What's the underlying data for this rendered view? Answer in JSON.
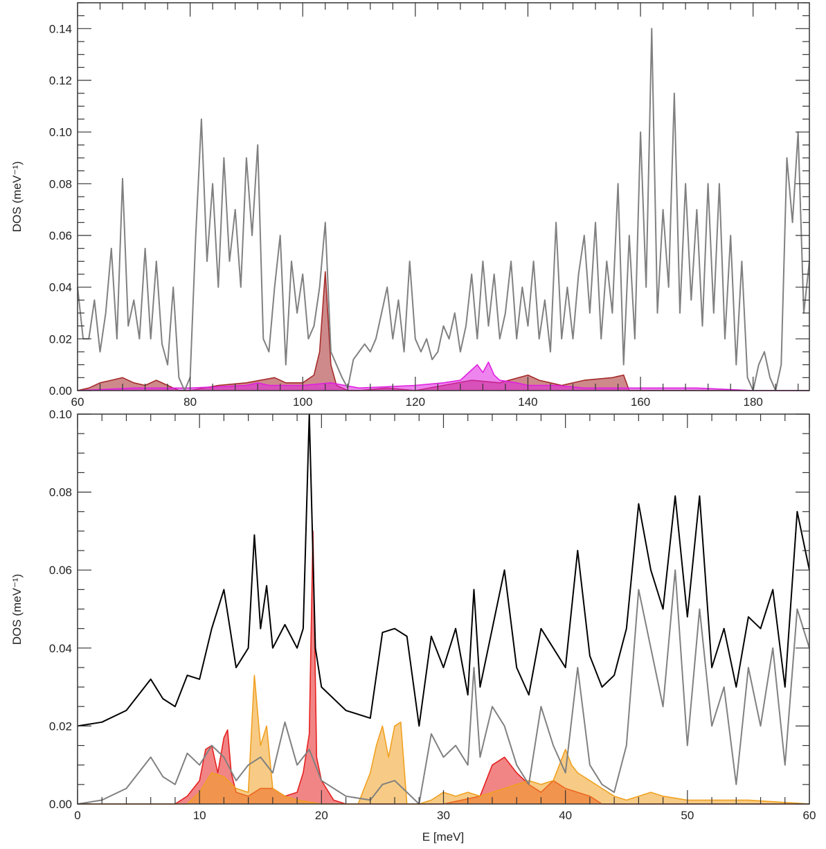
{
  "chart_data": [
    {
      "type": "area",
      "panel": "top",
      "title": "",
      "xlabel": "",
      "ylabel": "DOS (meV⁻¹)",
      "xlim": [
        60,
        190
      ],
      "ylim": [
        0,
        0.15
      ],
      "xticks": [
        "60",
        "80",
        "100",
        "120",
        "140",
        "160",
        "180"
      ],
      "yticks": [
        "0.00",
        "0.02",
        "0.04",
        "0.06",
        "0.08",
        "0.10",
        "0.12",
        "0.14"
      ],
      "grid": false,
      "series": [
        {
          "color": "#808080",
          "fill": false,
          "x": [
            60,
            61,
            62,
            63,
            64,
            65,
            66,
            67,
            68,
            69,
            70,
            71,
            72,
            73,
            74,
            75,
            76,
            77,
            78,
            79,
            80,
            81,
            82,
            83,
            84,
            85,
            86,
            87,
            88,
            89,
            90,
            91,
            92,
            93,
            94,
            95,
            96,
            97,
            98,
            99,
            100,
            101,
            102,
            103,
            104,
            105,
            106,
            107,
            108,
            109,
            110,
            111,
            112,
            113,
            114,
            115,
            116,
            117,
            118,
            119,
            120,
            121,
            122,
            123,
            124,
            125,
            126,
            127,
            128,
            129,
            130,
            131,
            132,
            133,
            134,
            135,
            136,
            137,
            138,
            139,
            140,
            141,
            142,
            143,
            144,
            145,
            146,
            147,
            148,
            149,
            150,
            151,
            152,
            153,
            154,
            155,
            156,
            157,
            158,
            159,
            160,
            161,
            162,
            163,
            164,
            165,
            166,
            167,
            168,
            169,
            170,
            171,
            172,
            173,
            174,
            175,
            176,
            177,
            178,
            179,
            180,
            181,
            182,
            183,
            184,
            185,
            186,
            187,
            188,
            189,
            190
          ],
          "y": [
            0.04,
            0.02,
            0.02,
            0.035,
            0.015,
            0.03,
            0.055,
            0.02,
            0.082,
            0.025,
            0.035,
            0.02,
            0.055,
            0.02,
            0.05,
            0.018,
            0.01,
            0.04,
            0.005,
            0.0,
            0.005,
            0.06,
            0.105,
            0.05,
            0.08,
            0.04,
            0.09,
            0.05,
            0.07,
            0.04,
            0.09,
            0.06,
            0.095,
            0.02,
            0.015,
            0.04,
            0.06,
            0.01,
            0.05,
            0.03,
            0.045,
            0.02,
            0.025,
            0.04,
            0.065,
            0.015,
            0.01,
            0.005,
            0.001,
            0.012,
            0.015,
            0.018,
            0.015,
            0.02,
            0.03,
            0.04,
            0.02,
            0.035,
            0.015,
            0.05,
            0.02,
            0.015,
            0.02,
            0.012,
            0.015,
            0.025,
            0.02,
            0.03,
            0.015,
            0.025,
            0.045,
            0.02,
            0.05,
            0.025,
            0.045,
            0.02,
            0.03,
            0.05,
            0.02,
            0.04,
            0.025,
            0.05,
            0.02,
            0.035,
            0.015,
            0.065,
            0.02,
            0.04,
            0.02,
            0.045,
            0.06,
            0.03,
            0.065,
            0.02,
            0.05,
            0.03,
            0.08,
            0.01,
            0.06,
            0.02,
            0.1,
            0.04,
            0.14,
            0.03,
            0.07,
            0.04,
            0.115,
            0.03,
            0.08,
            0.035,
            0.07,
            0.025,
            0.08,
            0.03,
            0.08,
            0.02,
            0.06,
            0.01,
            0.05,
            0.005,
            0.0,
            0.01,
            0.015,
            0.005,
            0.0,
            0.01,
            0.09,
            0.065,
            0.1,
            0.03,
            0.05
          ]
        },
        {
          "color": "#a52a2a",
          "fill": true,
          "x": [
            60,
            62,
            64,
            66,
            68,
            70,
            72,
            74,
            76,
            78,
            80,
            85,
            90,
            95,
            97,
            100,
            102,
            103,
            104,
            105,
            106,
            108,
            110,
            115,
            120,
            125,
            130,
            135,
            140,
            142,
            144,
            146,
            150,
            155,
            157,
            158,
            160,
            190
          ],
          "y": [
            0.0,
            0.001,
            0.003,
            0.004,
            0.005,
            0.003,
            0.002,
            0.004,
            0.002,
            0.0,
            0.0,
            0.002,
            0.003,
            0.005,
            0.003,
            0.003,
            0.006,
            0.015,
            0.046,
            0.01,
            0.002,
            0.0,
            0.0,
            0.001,
            0.0,
            0.002,
            0.004,
            0.003,
            0.006,
            0.004,
            0.003,
            0.002,
            0.004,
            0.005,
            0.006,
            0.0,
            0.0,
            0.0
          ]
        },
        {
          "color": "#e020e0",
          "fill": true,
          "x": [
            60,
            70,
            80,
            90,
            92,
            94,
            100,
            105,
            110,
            120,
            125,
            128,
            130,
            131,
            132,
            133,
            134,
            135,
            138,
            140,
            145,
            150,
            160,
            170,
            180,
            190
          ],
          "y": [
            0.0,
            0.001,
            0.001,
            0.002,
            0.003,
            0.002,
            0.002,
            0.003,
            0.001,
            0.002,
            0.003,
            0.004,
            0.008,
            0.01,
            0.007,
            0.011,
            0.006,
            0.004,
            0.003,
            0.002,
            0.002,
            0.001,
            0.001,
            0.001,
            0.0,
            0.0
          ]
        }
      ]
    },
    {
      "type": "area",
      "panel": "bottom",
      "title": "",
      "xlabel": "E [meV]",
      "ylabel": "DOS (meV⁻¹)",
      "xlim": [
        0,
        60
      ],
      "ylim": [
        0,
        0.1
      ],
      "xticks": [
        "0",
        "10",
        "20",
        "30",
        "40",
        "50",
        "60"
      ],
      "yticks": [
        "0.00",
        "0.02",
        "0.04",
        "0.06",
        "0.08",
        "0.10"
      ],
      "grid": false,
      "series": [
        {
          "color": "#000000",
          "fill": false,
          "x": [
            0,
            2,
            4,
            5,
            6,
            7,
            8,
            9,
            10,
            11,
            12,
            13,
            14,
            14.5,
            15,
            15.5,
            16,
            17,
            18,
            18.5,
            19,
            19.5,
            20,
            22,
            24,
            25,
            26,
            27,
            28,
            29,
            30,
            31,
            32,
            32.5,
            33,
            34,
            35,
            36,
            37,
            38,
            39,
            40,
            41,
            42,
            43,
            44,
            45,
            46,
            47,
            48,
            49,
            50,
            51,
            52,
            53,
            54,
            55,
            56,
            57,
            58,
            59,
            60
          ],
          "y": [
            0.02,
            0.021,
            0.024,
            0.028,
            0.032,
            0.027,
            0.025,
            0.033,
            0.032,
            0.045,
            0.055,
            0.035,
            0.04,
            0.069,
            0.045,
            0.056,
            0.04,
            0.046,
            0.04,
            0.045,
            0.1,
            0.04,
            0.03,
            0.024,
            0.022,
            0.044,
            0.045,
            0.043,
            0.02,
            0.043,
            0.035,
            0.045,
            0.028,
            0.055,
            0.03,
            0.045,
            0.06,
            0.035,
            0.028,
            0.045,
            0.04,
            0.035,
            0.065,
            0.038,
            0.03,
            0.033,
            0.045,
            0.077,
            0.06,
            0.05,
            0.079,
            0.048,
            0.079,
            0.035,
            0.045,
            0.03,
            0.048,
            0.045,
            0.055,
            0.03,
            0.075,
            0.06
          ]
        },
        {
          "color": "#808080",
          "fill": false,
          "x": [
            0,
            2,
            4,
            5,
            6,
            7,
            8,
            9,
            10,
            11,
            12,
            13,
            14,
            15,
            16,
            17,
            18,
            19,
            20,
            22,
            24,
            25,
            26,
            27,
            28,
            29,
            30,
            31,
            32,
            32.5,
            33,
            34,
            35,
            36,
            37,
            38,
            39,
            40,
            41,
            42,
            43,
            44,
            45,
            46,
            47,
            48,
            49,
            50,
            51,
            52,
            53,
            54,
            55,
            56,
            57,
            58,
            59,
            60
          ],
          "y": [
            0.0,
            0.001,
            0.004,
            0.008,
            0.012,
            0.007,
            0.005,
            0.013,
            0.01,
            0.015,
            0.012,
            0.006,
            0.01,
            0.012,
            0.008,
            0.021,
            0.01,
            0.014,
            0.006,
            0.002,
            0.001,
            0.005,
            0.006,
            0.003,
            0.0,
            0.018,
            0.012,
            0.015,
            0.01,
            0.035,
            0.012,
            0.025,
            0.02,
            0.01,
            0.005,
            0.025,
            0.015,
            0.008,
            0.035,
            0.01,
            0.005,
            0.003,
            0.015,
            0.055,
            0.04,
            0.025,
            0.06,
            0.015,
            0.05,
            0.02,
            0.03,
            0.005,
            0.035,
            0.02,
            0.04,
            0.01,
            0.05,
            0.04
          ]
        },
        {
          "color": "#e52020",
          "fill": true,
          "x": [
            0,
            8,
            9,
            10,
            10.5,
            11,
            11.5,
            12,
            12.3,
            12.6,
            13,
            14,
            15,
            16,
            17,
            18,
            18.5,
            19,
            19.3,
            19.6,
            20,
            21,
            22,
            30,
            33,
            34,
            35,
            36,
            37,
            38,
            39,
            40,
            41,
            42,
            43,
            60
          ],
          "y": [
            0.0,
            0.0,
            0.002,
            0.006,
            0.014,
            0.015,
            0.008,
            0.017,
            0.019,
            0.008,
            0.003,
            0.002,
            0.004,
            0.004,
            0.002,
            0.003,
            0.008,
            0.018,
            0.07,
            0.012,
            0.006,
            0.001,
            0.0,
            0.0,
            0.002,
            0.01,
            0.012,
            0.008,
            0.005,
            0.003,
            0.006,
            0.004,
            0.003,
            0.002,
            0.0,
            0.0
          ]
        },
        {
          "color": "#f0a020",
          "fill": true,
          "x": [
            0,
            9,
            10,
            11,
            12,
            13,
            14,
            14.5,
            15,
            15.5,
            16,
            17,
            18,
            20,
            23,
            24,
            24.5,
            25,
            25.5,
            26,
            26.5,
            27,
            28,
            29,
            30,
            31,
            32,
            33,
            34,
            35,
            36,
            37,
            38,
            39,
            40,
            40.5,
            41,
            42,
            43,
            44,
            45,
            46,
            47,
            48,
            50,
            55,
            60
          ],
          "y": [
            0.0,
            0.0,
            0.003,
            0.008,
            0.007,
            0.004,
            0.003,
            0.033,
            0.015,
            0.02,
            0.004,
            0.002,
            0.001,
            0.0,
            0.0,
            0.008,
            0.015,
            0.02,
            0.012,
            0.02,
            0.021,
            0.0,
            0.0,
            0.001,
            0.003,
            0.002,
            0.003,
            0.002,
            0.003,
            0.004,
            0.005,
            0.006,
            0.005,
            0.006,
            0.014,
            0.01,
            0.008,
            0.006,
            0.004,
            0.002,
            0.001,
            0.002,
            0.003,
            0.002,
            0.001,
            0.001,
            0.0
          ]
        }
      ]
    }
  ]
}
